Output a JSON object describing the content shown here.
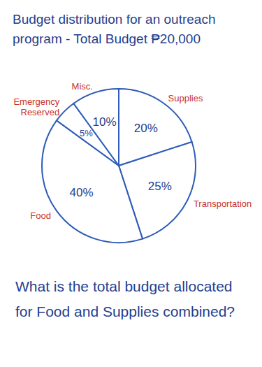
{
  "chart_data": {
    "type": "pie",
    "title": "Budget distribution for an outreach program - Total Budget ₱20,000",
    "categories": [
      "Supplies",
      "Transportation",
      "Food",
      "Emergency Reserved",
      "Misc."
    ],
    "values": [
      20,
      25,
      40,
      5,
      10
    ],
    "value_labels": [
      "20%",
      "25%",
      "40%",
      "5%",
      "10%"
    ],
    "data_labels": true,
    "color": "#2e5cb8",
    "annotations": [
      "What is the total budget allocated for Food and Supplies combined?"
    ]
  }
}
